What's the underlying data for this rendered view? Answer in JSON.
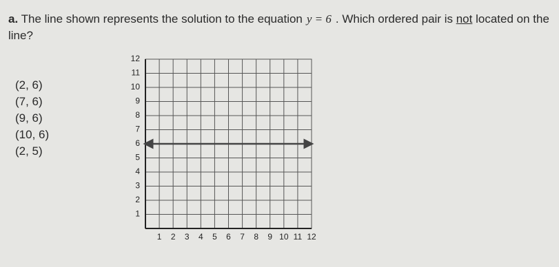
{
  "question": {
    "label": "a.",
    "text_before": "The line shown represents the solution to the equation",
    "equation": "y = 6",
    "text_middle": ". Which ordered pair is",
    "emphasis": "not",
    "text_after": "located on the line?"
  },
  "options": [
    "(2, 6)",
    "(7, 6)",
    "(9, 6)",
    "(10, 6)",
    "(2, 5)"
  ],
  "graph": {
    "xlim": [
      0,
      12
    ],
    "ylim": [
      0,
      12
    ],
    "xticks": [
      1,
      2,
      3,
      4,
      5,
      6,
      7,
      8,
      9,
      10,
      11,
      12
    ],
    "yticks": [
      1,
      2,
      3,
      4,
      5,
      6,
      7,
      8,
      9,
      10,
      11,
      12
    ],
    "line_y": 6
  }
}
